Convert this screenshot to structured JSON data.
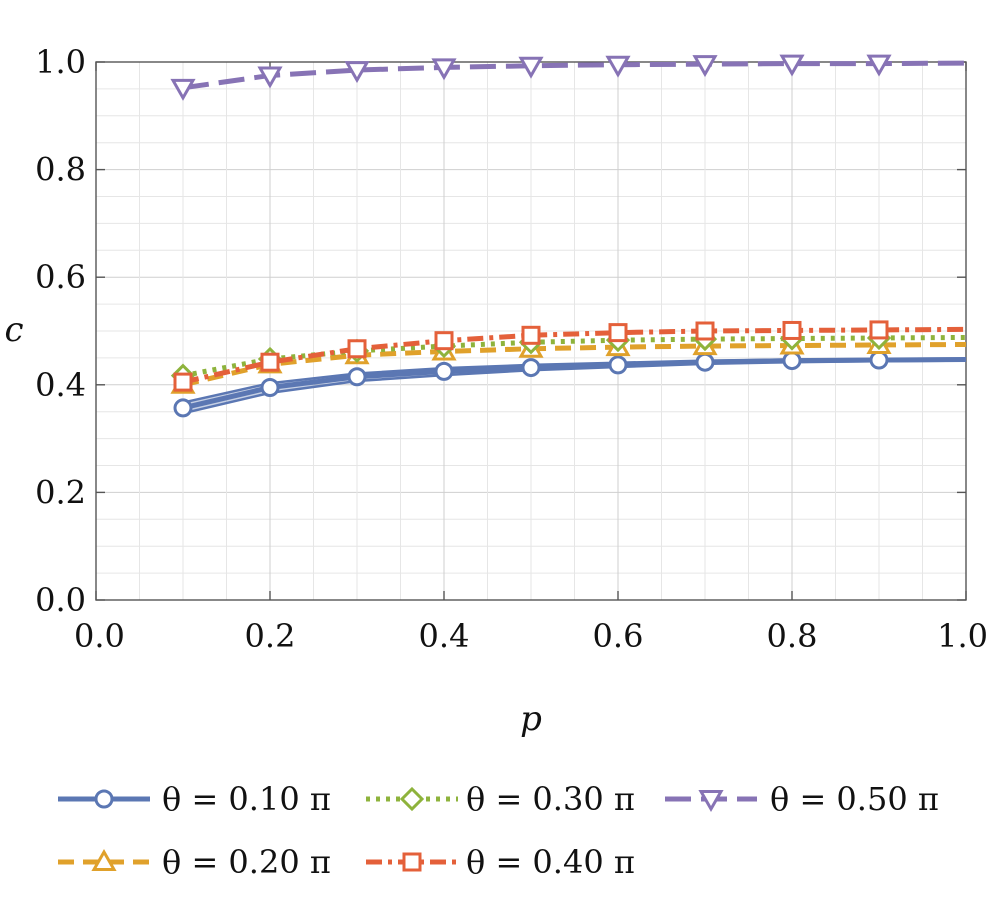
{
  "chart_data": {
    "type": "line",
    "title": "",
    "xlabel": "p",
    "ylabel": "c",
    "xlim": [
      0,
      1
    ],
    "ylim": [
      0,
      1
    ],
    "xticks": [
      "0.0",
      "0.2",
      "0.4",
      "0.6",
      "0.8",
      "1.0"
    ],
    "yticks": [
      "0.0",
      "0.2",
      "0.4",
      "0.6",
      "0.8",
      "1.0"
    ],
    "grid": true,
    "legend_position": "bottom",
    "x": [
      0.1,
      0.2,
      0.3,
      0.4,
      0.5,
      0.6,
      0.7,
      0.8,
      0.9,
      1.0
    ],
    "series": [
      {
        "name": "θ = 0.10 π",
        "color": "#5b77b3",
        "dash": "solid",
        "marker": "circle",
        "values": [
          0.357,
          0.395,
          0.415,
          0.425,
          0.432,
          0.437,
          0.442,
          0.445,
          0.446,
          0.447
        ],
        "band_lower": [
          0.347,
          0.385,
          0.407,
          0.418,
          0.427,
          0.433,
          0.439,
          0.442,
          0.444,
          0.445
        ],
        "band_upper": [
          0.367,
          0.403,
          0.421,
          0.431,
          0.437,
          0.441,
          0.445,
          0.447,
          0.448,
          0.449
        ]
      },
      {
        "name": "θ = 0.20 π",
        "color": "#e0a12b",
        "dash": "dashed",
        "marker": "triangle-up",
        "values": [
          0.4,
          0.438,
          0.455,
          0.462,
          0.467,
          0.47,
          0.472,
          0.473,
          0.474,
          0.475
        ]
      },
      {
        "name": "θ = 0.30 π",
        "color": "#8eb33c",
        "dash": "dotted",
        "marker": "diamond",
        "values": [
          0.417,
          0.448,
          0.463,
          0.472,
          0.479,
          0.483,
          0.485,
          0.486,
          0.487,
          0.488
        ]
      },
      {
        "name": "θ = 0.40 π",
        "color": "#e4603a",
        "dash": "dashdot",
        "marker": "square",
        "values": [
          0.405,
          0.442,
          0.467,
          0.482,
          0.492,
          0.497,
          0.5,
          0.501,
          0.502,
          0.503
        ]
      },
      {
        "name": "θ = 0.50 π",
        "color": "#8773b5",
        "dash": "longdash",
        "marker": "triangle-down",
        "values": [
          0.952,
          0.975,
          0.985,
          0.99,
          0.993,
          0.995,
          0.996,
          0.997,
          0.997,
          0.998
        ]
      }
    ]
  }
}
